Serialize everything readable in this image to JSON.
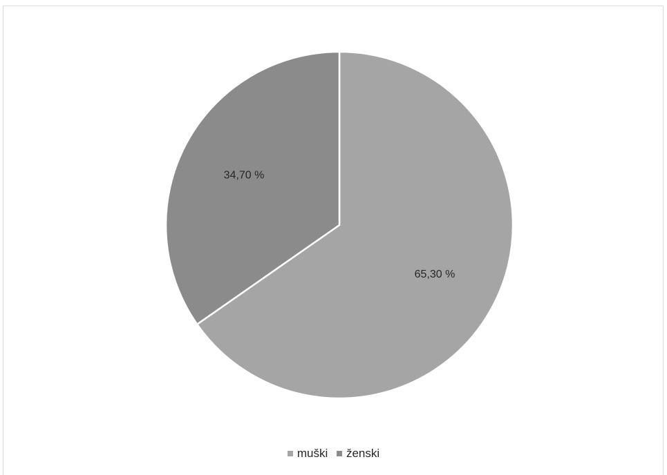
{
  "chart_data": {
    "type": "pie",
    "title": "",
    "slices": [
      {
        "name": "muški",
        "value": 65.3,
        "label": "65,30 %",
        "color": "#a5a5a5"
      },
      {
        "name": "ženski",
        "value": 34.7,
        "label": "34,70 %",
        "color": "#8b8b8b"
      }
    ],
    "legend_position": "bottom",
    "start_angle": "12 o'clock",
    "direction": "clockwise"
  }
}
